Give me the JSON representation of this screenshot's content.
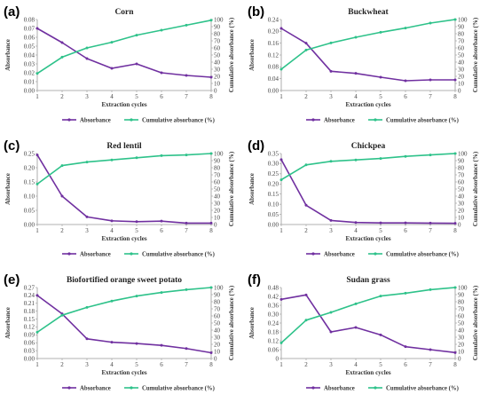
{
  "figure": {
    "colors": {
      "absorbance": "#7030a0",
      "cumulative": "#2ec28a",
      "axis": "#999999"
    }
  },
  "chart_data": [
    {
      "label": "(a)",
      "type": "line",
      "title": "Corn",
      "xlabel": "Extraction cycles",
      "ylabel_left": "Absorbance",
      "ylabel_right": "Cumulative absorbance (%)",
      "x": [
        1,
        2,
        3,
        4,
        5,
        6,
        7,
        8
      ],
      "ylim_left": [
        0,
        0.08
      ],
      "yticks_left": [
        "0.00",
        "0.01",
        "0.02",
        "0.03",
        "0.04",
        "0.05",
        "0.06",
        "0.07",
        "0.08"
      ],
      "yticks_left_values": [
        0,
        0.01,
        0.02,
        0.03,
        0.04,
        0.05,
        0.06,
        0.07,
        0.08
      ],
      "ylim_right": [
        0,
        100
      ],
      "yticks_right": [
        "0",
        "10",
        "20",
        "30",
        "40",
        "50",
        "60",
        "70",
        "80",
        "90",
        "100"
      ],
      "yticks_right_values": [
        0,
        10,
        20,
        30,
        40,
        50,
        60,
        70,
        80,
        90,
        100
      ],
      "series": [
        {
          "name": "Absorbance",
          "axis": "left",
          "values": [
            0.07,
            0.054,
            0.036,
            0.025,
            0.03,
            0.02,
            0.017,
            0.015
          ]
        },
        {
          "name": "Cumulative absorbance (%)",
          "axis": "right",
          "values": [
            24,
            47,
            60,
            68,
            78,
            85,
            92,
            99
          ]
        }
      ]
    },
    {
      "label": "(b)",
      "type": "line",
      "title": "Buckwheat",
      "xlabel": "Extraction cycles",
      "ylabel_left": "Absorbance",
      "ylabel_right": "Cumulative absorbance (%)",
      "x": [
        1,
        2,
        3,
        4,
        5,
        6,
        7,
        8
      ],
      "ylim_left": [
        0,
        0.24
      ],
      "yticks_left": [
        "0.00",
        "0.04",
        "0.08",
        "0.12",
        "0.16",
        "0.20",
        "0.24"
      ],
      "yticks_left_values": [
        0,
        0.04,
        0.08,
        0.12,
        0.16,
        0.2,
        0.24
      ],
      "ylim_right": [
        0,
        100
      ],
      "yticks_right": [
        "0",
        "10",
        "20",
        "30",
        "40",
        "50",
        "60",
        "70",
        "80",
        "90",
        "100"
      ],
      "yticks_right_values": [
        0,
        10,
        20,
        30,
        40,
        50,
        60,
        70,
        80,
        90,
        100
      ],
      "series": [
        {
          "name": "Absorbance",
          "axis": "left",
          "values": [
            0.21,
            0.16,
            0.065,
            0.058,
            0.045,
            0.033,
            0.036,
            0.036
          ]
        },
        {
          "name": "Cumulative absorbance (%)",
          "axis": "right",
          "values": [
            30,
            57,
            67,
            75,
            82,
            88,
            95,
            100
          ]
        }
      ]
    },
    {
      "label": "(c)",
      "type": "line",
      "title": "Red lentil",
      "xlabel": "Extraction cycles",
      "ylabel_left": "Absorbance",
      "ylabel_right": "Cumulative absorbance (%)",
      "x": [
        1,
        2,
        3,
        4,
        5,
        6,
        7,
        8
      ],
      "ylim_left": [
        0,
        0.25
      ],
      "yticks_left": [
        "0.00",
        "0.05",
        "0.10",
        "0.15",
        "0.20",
        "0.25"
      ],
      "yticks_left_values": [
        0,
        0.05,
        0.1,
        0.15,
        0.2,
        0.25
      ],
      "ylim_right": [
        0,
        100
      ],
      "yticks_right": [
        "0",
        "10",
        "20",
        "30",
        "40",
        "50",
        "60",
        "70",
        "80",
        "90",
        "100"
      ],
      "yticks_right_values": [
        0,
        10,
        20,
        30,
        40,
        50,
        60,
        70,
        80,
        90,
        100
      ],
      "series": [
        {
          "name": "Absorbance",
          "axis": "left",
          "values": [
            0.245,
            0.1,
            0.027,
            0.013,
            0.01,
            0.012,
            0.005,
            0.005
          ]
        },
        {
          "name": "Cumulative absorbance (%)",
          "axis": "right",
          "values": [
            57,
            83,
            88,
            91,
            94,
            97,
            98,
            100
          ]
        }
      ]
    },
    {
      "label": "(d)",
      "type": "line",
      "title": "Chickpea",
      "xlabel": "Extraction cycles",
      "ylabel_left": "Absorbance",
      "ylabel_right": "Cumulative absorbance (%)",
      "x": [
        1,
        2,
        3,
        4,
        5,
        6,
        7,
        8
      ],
      "ylim_left": [
        0,
        0.35
      ],
      "yticks_left": [
        "0.00",
        "0.05",
        "0.10",
        "0.15",
        "0.20",
        "0.25",
        "0.30",
        "0.35"
      ],
      "yticks_left_values": [
        0,
        0.05,
        0.1,
        0.15,
        0.2,
        0.25,
        0.3,
        0.35
      ],
      "ylim_right": [
        0,
        100
      ],
      "yticks_right": [
        "0",
        "10",
        "20",
        "30",
        "40",
        "50",
        "60",
        "70",
        "80",
        "90",
        "100"
      ],
      "yticks_right_values": [
        0,
        10,
        20,
        30,
        40,
        50,
        60,
        70,
        80,
        90,
        100
      ],
      "series": [
        {
          "name": "Absorbance",
          "axis": "left",
          "values": [
            0.32,
            0.095,
            0.02,
            0.01,
            0.008,
            0.008,
            0.007,
            0.006
          ]
        },
        {
          "name": "Cumulative absorbance (%)",
          "axis": "right",
          "values": [
            63,
            84,
            89,
            91,
            93,
            96,
            98,
            100
          ]
        }
      ]
    },
    {
      "label": "(e)",
      "type": "line",
      "title": "Biofortified orange sweet potato",
      "xlabel": "Extraction cycles",
      "ylabel_left": "Absorbance",
      "ylabel_right": "Cumulative absorbance (%)",
      "x": [
        1,
        2,
        3,
        4,
        5,
        6,
        7,
        8
      ],
      "ylim_left": [
        0,
        0.27
      ],
      "yticks_left": [
        "0.00",
        "0.03",
        "0.06",
        "0.09",
        "0.12",
        "0.15",
        "0.18",
        "0.21",
        "0.24",
        "0.27"
      ],
      "yticks_left_values": [
        0,
        0.03,
        0.06,
        0.09,
        0.12,
        0.15,
        0.18,
        0.21,
        0.24,
        0.27
      ],
      "ylim_right": [
        0,
        100
      ],
      "yticks_right": [
        "0",
        "10",
        "20",
        "30",
        "40",
        "50",
        "60",
        "70",
        "80",
        "90",
        "100"
      ],
      "yticks_right_values": [
        0,
        10,
        20,
        30,
        40,
        50,
        60,
        70,
        80,
        90,
        100
      ],
      "series": [
        {
          "name": "Absorbance",
          "axis": "left",
          "values": [
            0.24,
            0.17,
            0.075,
            0.062,
            0.057,
            0.05,
            0.038,
            0.022
          ]
        },
        {
          "name": "Cumulative absorbance (%)",
          "axis": "right",
          "values": [
            37,
            61,
            72,
            81,
            88,
            93,
            97,
            100
          ]
        }
      ]
    },
    {
      "label": "(f)",
      "type": "line",
      "title": "Sudan grass",
      "xlabel": "Extraction cycles",
      "ylabel_left": "Absorbance",
      "ylabel_right": "Cumulative absorbance (%)",
      "x": [
        1,
        2,
        3,
        4,
        5,
        6,
        7,
        8
      ],
      "ylim_left": [
        0,
        0.48
      ],
      "yticks_left": [
        "0",
        "0.06",
        "0.12",
        "0.18",
        "0.24",
        "0.30",
        "0.36",
        "0.42",
        "0.48"
      ],
      "yticks_left_values": [
        0,
        0.06,
        0.12,
        0.18,
        0.24,
        0.3,
        0.36,
        0.42,
        0.48
      ],
      "ylim_right": [
        0,
        100
      ],
      "yticks_right": [
        "0",
        "10",
        "20",
        "30",
        "40",
        "50",
        "60",
        "70",
        "80",
        "90",
        "100"
      ],
      "yticks_right_values": [
        0,
        10,
        20,
        30,
        40,
        50,
        60,
        70,
        80,
        90,
        100
      ],
      "series": [
        {
          "name": "Absorbance",
          "axis": "left",
          "values": [
            0.4,
            0.43,
            0.18,
            0.21,
            0.16,
            0.08,
            0.06,
            0.04
          ]
        },
        {
          "name": "Cumulative absorbance (%)",
          "axis": "right",
          "values": [
            22,
            54,
            65,
            77,
            88,
            92,
            97,
            100
          ]
        }
      ]
    }
  ]
}
